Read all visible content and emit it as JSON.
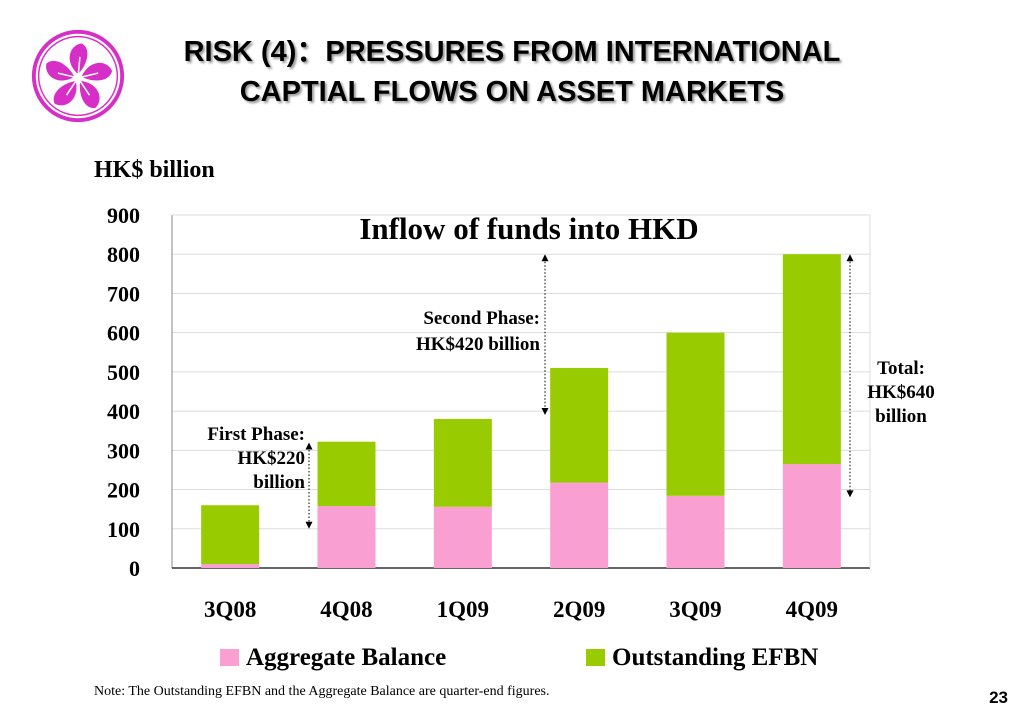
{
  "slide": {
    "title_line1": "RISK (4)：PRESSURES FROM INTERNATIONAL",
    "title_line2": "CAPTIAL FLOWS ON ASSET MARKETS",
    "note": "Note: The Outstanding EFBN and the Aggregate Balance are quarter-end figures.",
    "page_number": "23"
  },
  "logo": {
    "icon": "bauhinia-flower-icon",
    "color": "#d62ec6"
  },
  "chart_data": {
    "type": "bar",
    "stacked": true,
    "title": "Inflow of funds into HKD",
    "ylabel": "HK$ billion",
    "xlabel": "",
    "ylim": [
      0,
      900
    ],
    "yticks": [
      0,
      100,
      200,
      300,
      400,
      500,
      600,
      700,
      800,
      900
    ],
    "grid": true,
    "legend_position": "bottom",
    "categories": [
      "3Q08",
      "4Q08",
      "1Q09",
      "2Q09",
      "3Q09",
      "4Q09"
    ],
    "series": [
      {
        "name": "Aggregate Balance",
        "color": "#f99fd1",
        "values": [
          10,
          158,
          156,
          218,
          184,
          265
        ]
      },
      {
        "name": "Outstanding EFBN",
        "color": "#99cc00",
        "values": [
          150,
          164,
          224,
          292,
          416,
          535
        ]
      }
    ],
    "annotations": {
      "first_phase": {
        "lines": [
          "First Phase:",
          "HK$220",
          "billion"
        ],
        "range": [
          100,
          320
        ]
      },
      "second_phase": {
        "lines": [
          "Second Phase:",
          "HK$420 billion"
        ],
        "range": [
          390,
          800
        ]
      },
      "total": {
        "lines": [
          "Total:",
          "HK$640",
          "billion"
        ],
        "range": [
          180,
          800
        ]
      }
    }
  }
}
